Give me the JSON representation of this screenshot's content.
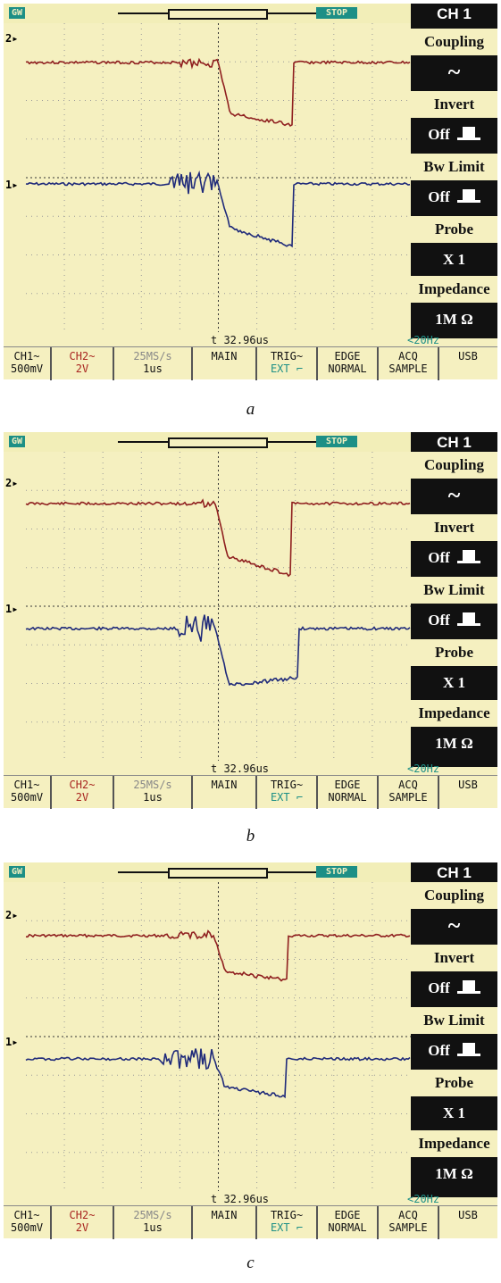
{
  "panels": [
    {
      "top_status": {
        "gw": "GW",
        "stop": "STOP"
      },
      "side_menu": {
        "channel": "CH 1",
        "coupling_label": "Coupling",
        "coupling_value": "~",
        "invert_label": "Invert",
        "invert_value": "Off",
        "bwlimit_label": "Bw Limit",
        "bwlimit_value": "Off",
        "probe_label": "Probe",
        "probe_value": "X  1",
        "impedance_label": "Impedance",
        "impedance_value": "1M Ω"
      },
      "marker_ch1": "1",
      "marker_ch2": "2",
      "time_offset": "t 32.96us",
      "trigger_freq": "<20Hz",
      "bottom": {
        "ch1": "CH1~",
        "ch1_scale": "500mV",
        "ch2": "CH2~",
        "ch2_scale": "2V",
        "rate": "25MS/s",
        "timebase": "1us",
        "main": "MAIN",
        "trig": "TRIG~",
        "trig_src": "EXT ⌐",
        "edge": "EDGE",
        "edge_mode": "NORMAL",
        "acq": "ACQ",
        "acq_mode": "SAMPLE",
        "usb": "USB"
      },
      "caption": "a"
    },
    {
      "top_status": {
        "gw": "GW",
        "stop": "STOP"
      },
      "side_menu": {
        "channel": "CH 1",
        "coupling_label": "Coupling",
        "coupling_value": "~",
        "invert_label": "Invert",
        "invert_value": "Off",
        "bwlimit_label": "Bw Limit",
        "bwlimit_value": "Off",
        "probe_label": "Probe",
        "probe_value": "X  1",
        "impedance_label": "Impedance",
        "impedance_value": "1M Ω"
      },
      "marker_ch1": "1",
      "marker_ch2": "2",
      "time_offset": "t 32.96us",
      "trigger_freq": "<20Hz",
      "bottom": {
        "ch1": "CH1~",
        "ch1_scale": "500mV",
        "ch2": "CH2~",
        "ch2_scale": "2V",
        "rate": "25MS/s",
        "timebase": "1us",
        "main": "MAIN",
        "trig": "TRIG~",
        "trig_src": "EXT ⌐",
        "edge": "EDGE",
        "edge_mode": "NORMAL",
        "acq": "ACQ",
        "acq_mode": "SAMPLE",
        "usb": "USB"
      },
      "caption": "b"
    },
    {
      "top_status": {
        "gw": "GW",
        "stop": "STOP"
      },
      "side_menu": {
        "channel": "CH 1",
        "coupling_label": "Coupling",
        "coupling_value": "~",
        "invert_label": "Invert",
        "invert_value": "Off",
        "bwlimit_label": "Bw Limit",
        "bwlimit_value": "Off",
        "probe_label": "Probe",
        "probe_value": "X  1",
        "impedance_label": "Impedance",
        "impedance_value": "1M Ω"
      },
      "marker_ch1": "1",
      "marker_ch2": "2",
      "time_offset": "t 32.96us",
      "trigger_freq": "<20Hz",
      "bottom": {
        "ch1": "CH1~",
        "ch1_scale": "500mV",
        "ch2": "CH2~",
        "ch2_scale": "2V",
        "rate": "25MS/s",
        "timebase": "1us",
        "main": "MAIN",
        "trig": "TRIG~",
        "trig_src": "EXT ⌐",
        "edge": "EDGE",
        "edge_mode": "NORMAL",
        "acq": "ACQ",
        "acq_mode": "SAMPLE",
        "usb": "USB"
      },
      "caption": "c"
    }
  ],
  "colors": {
    "ch1_trace": "#1f2a7a",
    "ch2_trace": "#8f1f1f",
    "screen": "#f5f0c0",
    "menu_bg": "#111111",
    "accent": "#1d8f86"
  }
}
